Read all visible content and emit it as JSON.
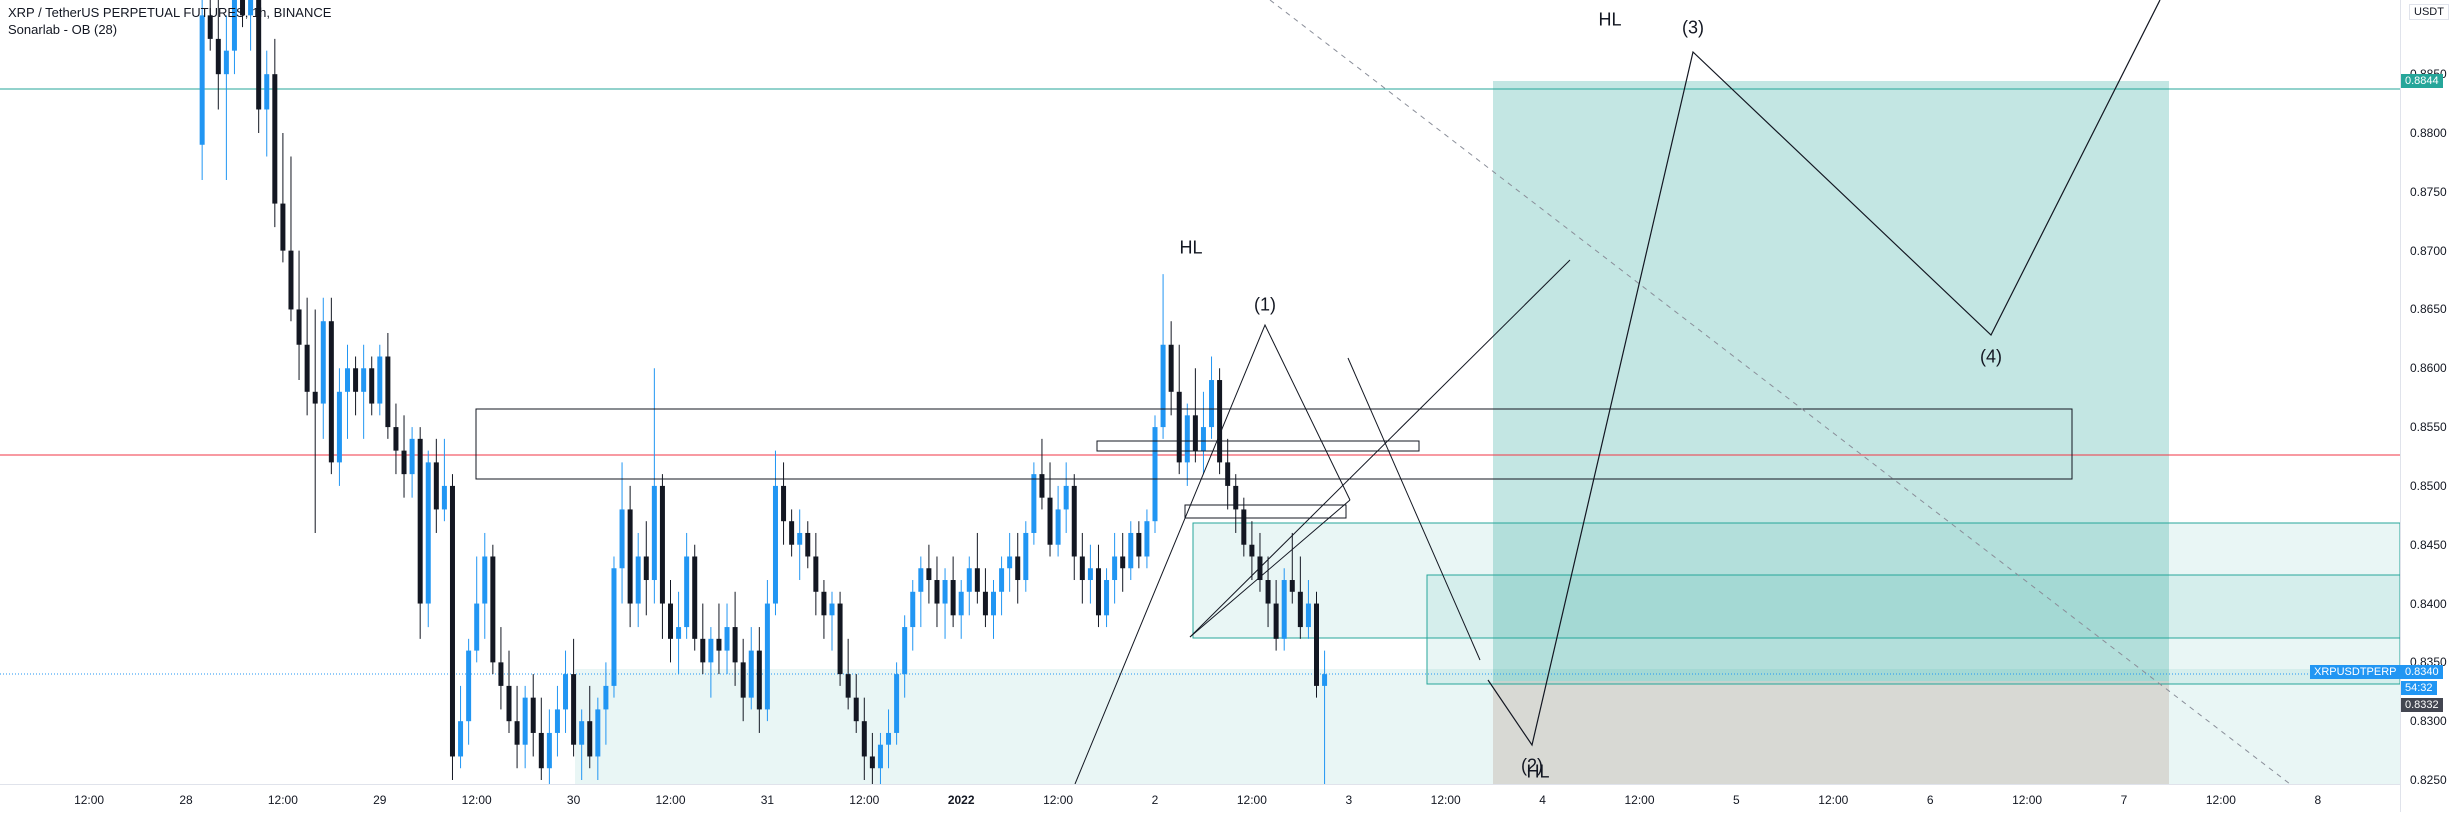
{
  "legend": {
    "symbol": "XRP / TetherUS PERPETUAL FUTURES, 1h, BINANCE",
    "indicator": "Sonarlab - OB (28)"
  },
  "currency": "USDT",
  "colors": {
    "up": "#2196f3",
    "down": "#131722",
    "target_zone": "#26a69a",
    "stop_zone": "#d7b9b0",
    "red_line": "#f23645",
    "teal_line": "#26a69a",
    "current_price_tag": "#2196f3",
    "dark_tag": "#434651"
  },
  "price_labels": {
    "target_price": "0.8844",
    "current_symbol": "XRPUSDTPERP",
    "current_price": "0.8340",
    "countdown": "54:32",
    "entry_price": "0.8332"
  },
  "annotations": {
    "hl_top": "HL",
    "hl_mid": "HL",
    "hl_bottom": "HL",
    "wave1": "(1)",
    "wave2": "(2)",
    "wave3": "(3)",
    "wave4": "(4)"
  },
  "chart_data": {
    "type": "candlestick",
    "title": "XRP / TetherUS PERPETUAL FUTURES, 1h, BINANCE",
    "y_range": [
      0.8238,
      0.8975
    ],
    "y_ticks": [
      "0.8250",
      "0.8300",
      "0.8350",
      "0.8400",
      "0.8450",
      "0.8500",
      "0.8550",
      "0.8600",
      "0.8650",
      "0.8700",
      "0.8750",
      "0.8800",
      "0.8850"
    ],
    "x_ticks": [
      {
        "label": "12:00",
        "hour": -12
      },
      {
        "label": "28",
        "hour": 0
      },
      {
        "label": "12:00",
        "hour": 12
      },
      {
        "label": "29",
        "hour": 24
      },
      {
        "label": "12:00",
        "hour": 36
      },
      {
        "label": "30",
        "hour": 48
      },
      {
        "label": "12:00",
        "hour": 60
      },
      {
        "label": "31",
        "hour": 72
      },
      {
        "label": "12:00",
        "hour": 84
      },
      {
        "label": "2022",
        "hour": 96
      },
      {
        "label": "12:00",
        "hour": 108
      },
      {
        "label": "2",
        "hour": 120
      },
      {
        "label": "12:00",
        "hour": 132
      },
      {
        "label": "3",
        "hour": 144
      },
      {
        "label": "12:00",
        "hour": 156
      },
      {
        "label": "4",
        "hour": 168
      },
      {
        "label": "12:00",
        "hour": 180
      },
      {
        "label": "5",
        "hour": 192
      },
      {
        "label": "12:00",
        "hour": 204
      },
      {
        "label": "6",
        "hour": 216
      },
      {
        "label": "12:00",
        "hour": 228
      },
      {
        "label": "7",
        "hour": 240
      },
      {
        "label": "12:00",
        "hour": 252
      },
      {
        "label": "8",
        "hour": 264
      }
    ],
    "start_hour": 2,
    "candles": [
      [
        0.879,
        0.892,
        0.876,
        0.89
      ],
      [
        0.89,
        0.896,
        0.887,
        0.888
      ],
      [
        0.888,
        0.896,
        0.882,
        0.885
      ],
      [
        0.885,
        0.89,
        0.876,
        0.887
      ],
      [
        0.887,
        0.896,
        0.885,
        0.894
      ],
      [
        0.894,
        0.897,
        0.889,
        0.89
      ],
      [
        0.89,
        0.896,
        0.887,
        0.895
      ],
      [
        0.895,
        0.897,
        0.88,
        0.882
      ],
      [
        0.882,
        0.887,
        0.878,
        0.885
      ],
      [
        0.885,
        0.888,
        0.872,
        0.874
      ],
      [
        0.874,
        0.88,
        0.869,
        0.87
      ],
      [
        0.87,
        0.878,
        0.864,
        0.865
      ],
      [
        0.865,
        0.87,
        0.859,
        0.862
      ],
      [
        0.862,
        0.866,
        0.856,
        0.858
      ],
      [
        0.858,
        0.865,
        0.846,
        0.857
      ],
      [
        0.857,
        0.866,
        0.854,
        0.864
      ],
      [
        0.864,
        0.866,
        0.851,
        0.852
      ],
      [
        0.852,
        0.86,
        0.85,
        0.858
      ],
      [
        0.858,
        0.862,
        0.854,
        0.86
      ],
      [
        0.86,
        0.861,
        0.856,
        0.858
      ],
      [
        0.858,
        0.862,
        0.854,
        0.86
      ],
      [
        0.86,
        0.861,
        0.856,
        0.857
      ],
      [
        0.857,
        0.862,
        0.856,
        0.861
      ],
      [
        0.861,
        0.863,
        0.854,
        0.855
      ],
      [
        0.855,
        0.857,
        0.851,
        0.853
      ],
      [
        0.853,
        0.856,
        0.849,
        0.851
      ],
      [
        0.851,
        0.855,
        0.849,
        0.854
      ],
      [
        0.854,
        0.855,
        0.837,
        0.84
      ],
      [
        0.84,
        0.853,
        0.838,
        0.852
      ],
      [
        0.852,
        0.854,
        0.846,
        0.848
      ],
      [
        0.848,
        0.854,
        0.847,
        0.85
      ],
      [
        0.85,
        0.851,
        0.825,
        0.827
      ],
      [
        0.827,
        0.833,
        0.826,
        0.83
      ],
      [
        0.83,
        0.837,
        0.828,
        0.836
      ],
      [
        0.836,
        0.844,
        0.835,
        0.84
      ],
      [
        0.84,
        0.846,
        0.837,
        0.844
      ],
      [
        0.844,
        0.845,
        0.834,
        0.835
      ],
      [
        0.835,
        0.838,
        0.831,
        0.833
      ],
      [
        0.833,
        0.836,
        0.829,
        0.83
      ],
      [
        0.83,
        0.833,
        0.826,
        0.828
      ],
      [
        0.828,
        0.833,
        0.826,
        0.832
      ],
      [
        0.832,
        0.834,
        0.827,
        0.829
      ],
      [
        0.829,
        0.832,
        0.825,
        0.826
      ],
      [
        0.826,
        0.831,
        0.824,
        0.829
      ],
      [
        0.829,
        0.833,
        0.827,
        0.831
      ],
      [
        0.831,
        0.836,
        0.829,
        0.834
      ],
      [
        0.834,
        0.837,
        0.827,
        0.828
      ],
      [
        0.828,
        0.831,
        0.825,
        0.83
      ],
      [
        0.83,
        0.833,
        0.826,
        0.827
      ],
      [
        0.827,
        0.832,
        0.825,
        0.831
      ],
      [
        0.831,
        0.835,
        0.828,
        0.833
      ],
      [
        0.833,
        0.844,
        0.832,
        0.843
      ],
      [
        0.843,
        0.852,
        0.84,
        0.848
      ],
      [
        0.848,
        0.85,
        0.838,
        0.84
      ],
      [
        0.84,
        0.846,
        0.838,
        0.844
      ],
      [
        0.844,
        0.847,
        0.839,
        0.842
      ],
      [
        0.842,
        0.86,
        0.84,
        0.85
      ],
      [
        0.85,
        0.851,
        0.837,
        0.84
      ],
      [
        0.84,
        0.842,
        0.835,
        0.837
      ],
      [
        0.837,
        0.841,
        0.834,
        0.838
      ],
      [
        0.838,
        0.846,
        0.837,
        0.844
      ],
      [
        0.844,
        0.845,
        0.836,
        0.837
      ],
      [
        0.837,
        0.84,
        0.834,
        0.835
      ],
      [
        0.835,
        0.838,
        0.832,
        0.837
      ],
      [
        0.837,
        0.84,
        0.834,
        0.836
      ],
      [
        0.836,
        0.84,
        0.834,
        0.838
      ],
      [
        0.838,
        0.841,
        0.833,
        0.835
      ],
      [
        0.835,
        0.837,
        0.83,
        0.832
      ],
      [
        0.832,
        0.838,
        0.831,
        0.836
      ],
      [
        0.836,
        0.838,
        0.829,
        0.831
      ],
      [
        0.831,
        0.842,
        0.83,
        0.84
      ],
      [
        0.84,
        0.853,
        0.839,
        0.85
      ],
      [
        0.85,
        0.852,
        0.845,
        0.847
      ],
      [
        0.847,
        0.848,
        0.844,
        0.845
      ],
      [
        0.845,
        0.848,
        0.842,
        0.846
      ],
      [
        0.846,
        0.847,
        0.843,
        0.844
      ],
      [
        0.844,
        0.846,
        0.839,
        0.841
      ],
      [
        0.841,
        0.842,
        0.837,
        0.839
      ],
      [
        0.839,
        0.841,
        0.836,
        0.84
      ],
      [
        0.84,
        0.841,
        0.833,
        0.834
      ],
      [
        0.834,
        0.837,
        0.831,
        0.832
      ],
      [
        0.832,
        0.834,
        0.829,
        0.83
      ],
      [
        0.83,
        0.832,
        0.825,
        0.827
      ],
      [
        0.827,
        0.829,
        0.824,
        0.826
      ],
      [
        0.826,
        0.829,
        0.824,
        0.828
      ],
      [
        0.828,
        0.831,
        0.826,
        0.829
      ],
      [
        0.829,
        0.835,
        0.828,
        0.834
      ],
      [
        0.834,
        0.839,
        0.832,
        0.838
      ],
      [
        0.838,
        0.842,
        0.836,
        0.841
      ],
      [
        0.841,
        0.844,
        0.838,
        0.843
      ],
      [
        0.843,
        0.845,
        0.84,
        0.842
      ],
      [
        0.842,
        0.844,
        0.838,
        0.84
      ],
      [
        0.84,
        0.843,
        0.837,
        0.842
      ],
      [
        0.842,
        0.844,
        0.838,
        0.839
      ],
      [
        0.839,
        0.842,
        0.837,
        0.841
      ],
      [
        0.841,
        0.844,
        0.839,
        0.843
      ],
      [
        0.843,
        0.846,
        0.84,
        0.841
      ],
      [
        0.841,
        0.843,
        0.838,
        0.839
      ],
      [
        0.839,
        0.842,
        0.837,
        0.841
      ],
      [
        0.841,
        0.844,
        0.839,
        0.843
      ],
      [
        0.843,
        0.846,
        0.841,
        0.844
      ],
      [
        0.844,
        0.846,
        0.84,
        0.842
      ],
      [
        0.842,
        0.847,
        0.841,
        0.846
      ],
      [
        0.846,
        0.852,
        0.845,
        0.851
      ],
      [
        0.851,
        0.854,
        0.848,
        0.849
      ],
      [
        0.849,
        0.852,
        0.844,
        0.845
      ],
      [
        0.845,
        0.85,
        0.844,
        0.848
      ],
      [
        0.848,
        0.852,
        0.846,
        0.85
      ],
      [
        0.85,
        0.851,
        0.842,
        0.844
      ],
      [
        0.844,
        0.846,
        0.84,
        0.842
      ],
      [
        0.842,
        0.845,
        0.84,
        0.843
      ],
      [
        0.843,
        0.845,
        0.838,
        0.839
      ],
      [
        0.839,
        0.843,
        0.838,
        0.842
      ],
      [
        0.842,
        0.846,
        0.84,
        0.844
      ],
      [
        0.844,
        0.846,
        0.841,
        0.843
      ],
      [
        0.843,
        0.847,
        0.842,
        0.846
      ],
      [
        0.846,
        0.847,
        0.843,
        0.844
      ],
      [
        0.844,
        0.848,
        0.843,
        0.847
      ],
      [
        0.847,
        0.856,
        0.846,
        0.855
      ],
      [
        0.855,
        0.868,
        0.854,
        0.862
      ],
      [
        0.862,
        0.864,
        0.856,
        0.858
      ],
      [
        0.858,
        0.862,
        0.851,
        0.852
      ],
      [
        0.852,
        0.857,
        0.85,
        0.856
      ],
      [
        0.856,
        0.86,
        0.852,
        0.853
      ],
      [
        0.853,
        0.858,
        0.851,
        0.855
      ],
      [
        0.855,
        0.861,
        0.854,
        0.859
      ],
      [
        0.859,
        0.86,
        0.851,
        0.852
      ],
      [
        0.852,
        0.854,
        0.848,
        0.85
      ],
      [
        0.85,
        0.851,
        0.846,
        0.848
      ],
      [
        0.848,
        0.849,
        0.844,
        0.845
      ],
      [
        0.845,
        0.847,
        0.842,
        0.844
      ],
      [
        0.844,
        0.846,
        0.841,
        0.842
      ],
      [
        0.842,
        0.844,
        0.838,
        0.84
      ],
      [
        0.84,
        0.842,
        0.836,
        0.837
      ],
      [
        0.837,
        0.843,
        0.836,
        0.842
      ],
      [
        0.842,
        0.846,
        0.84,
        0.841
      ],
      [
        0.841,
        0.844,
        0.837,
        0.838
      ],
      [
        0.838,
        0.842,
        0.837,
        0.84
      ],
      [
        0.84,
        0.841,
        0.832,
        0.833
      ],
      [
        0.833,
        0.836,
        0.824,
        0.834
      ]
    ]
  }
}
